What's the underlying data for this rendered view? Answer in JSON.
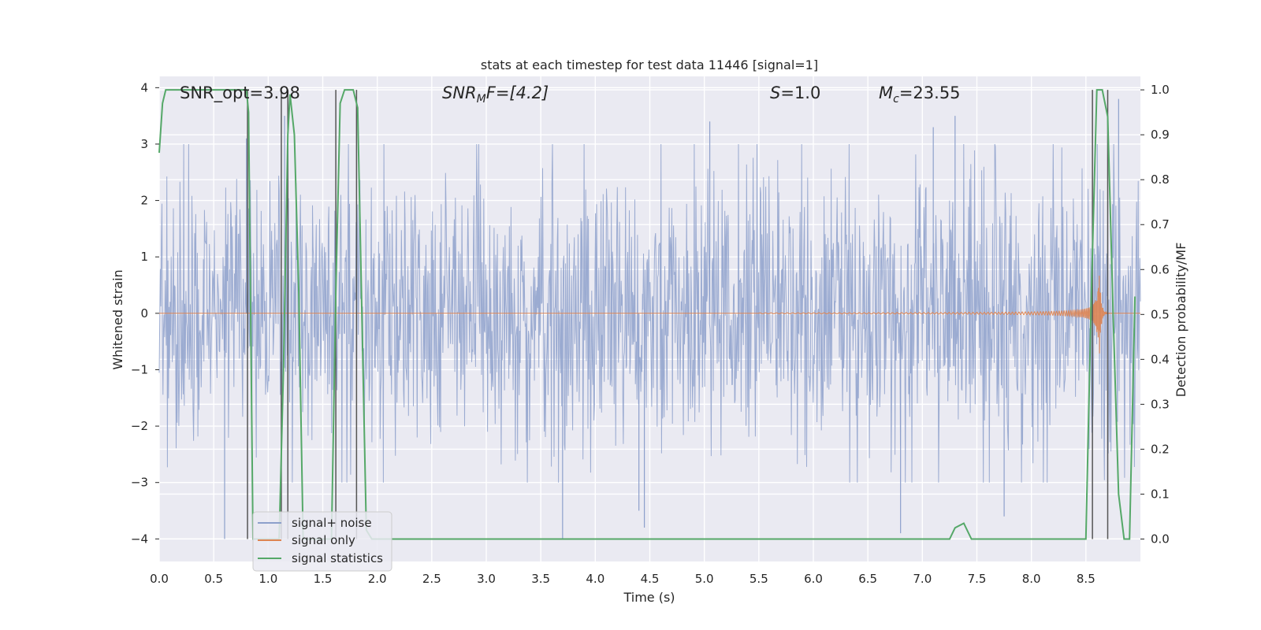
{
  "chart_data": {
    "type": "line",
    "title": "stats at each timestep for test data 11446 [signal=1]",
    "xlabel": "Time (s)",
    "ylabel_left": "Whitened strain",
    "ylabel_right": "Detection probability/MF",
    "xlim": [
      0,
      9
    ],
    "ylim_left": [
      -4.4,
      4.2
    ],
    "ylim_right": [
      -0.05,
      1.03
    ],
    "x_ticks": [
      "0.0",
      "0.5",
      "1.0",
      "1.5",
      "2.0",
      "2.5",
      "3.0",
      "3.5",
      "4.0",
      "4.5",
      "5.0",
      "5.5",
      "6.0",
      "6.5",
      "7.0",
      "7.5",
      "8.0",
      "8.5"
    ],
    "y_left_ticks": [
      "4",
      "3",
      "2",
      "1",
      "0",
      "−1",
      "−2",
      "−3",
      "−4"
    ],
    "y_right_ticks": [
      "1.0",
      "0.9",
      "0.8",
      "0.7",
      "0.6",
      "0.5",
      "0.4",
      "0.3",
      "0.2",
      "0.1",
      "0.0"
    ],
    "grid": true,
    "legend_position": "lower-left",
    "annotations": {
      "snr_opt": "SNR_opt=3.98",
      "snr_mf_base": "SNR",
      "snr_mf_sub": "M",
      "snr_mf_rest": "F=[4.2]",
      "s_base": "S",
      "s_rest": "=1.0",
      "mc_base": "M",
      "mc_sub": "c",
      "mc_rest": "=23.55"
    },
    "series": [
      {
        "name": "signal+ noise",
        "color": "#8da0cb",
        "axis": "left",
        "description": "whitened strain noise, amplitude roughly within ±2 with peaks to ±4",
        "amplitude_envelope": [
          [
            0.0,
            1.6
          ],
          [
            4.5,
            1.6
          ],
          [
            9.0,
            1.7
          ]
        ],
        "peaks": [
          [
            0.6,
            -4.0
          ],
          [
            0.8,
            3.1
          ],
          [
            1.15,
            3.5
          ],
          [
            3.7,
            -4.0
          ],
          [
            4.4,
            -3.5
          ],
          [
            4.45,
            -3.8
          ],
          [
            5.05,
            3.4
          ],
          [
            6.8,
            -3.9
          ],
          [
            7.1,
            3.3
          ],
          [
            7.3,
            3.5
          ],
          [
            7.75,
            -3.6
          ],
          [
            8.8,
            3.8
          ]
        ]
      },
      {
        "name": "signal only",
        "color": "#dd8452",
        "axis": "left",
        "description": "chirp waveform growing toward merger",
        "chirp": {
          "t_start": 5.5,
          "t_merger": 8.62,
          "peak_amplitude": 1.0
        }
      },
      {
        "name": "signal statistics",
        "color": "#55a868",
        "axis": "right",
        "x": [
          0.0,
          0.03,
          0.06,
          0.1,
          0.8,
          0.82,
          0.86,
          1.1,
          1.14,
          1.18,
          1.2,
          1.24,
          1.28,
          1.32,
          1.58,
          1.62,
          1.66,
          1.7,
          1.78,
          1.82,
          1.9,
          1.95,
          2.0,
          7.25,
          7.3,
          7.38,
          7.45,
          8.5,
          8.55,
          8.6,
          8.65,
          8.7,
          8.75,
          8.8,
          8.85,
          8.9,
          8.95
        ],
        "y": [
          0.86,
          0.97,
          1.0,
          1.0,
          1.0,
          0.95,
          0.0,
          0.0,
          0.38,
          0.9,
          0.99,
          0.9,
          0.55,
          0.0,
          0.0,
          0.55,
          0.97,
          1.0,
          1.0,
          0.96,
          0.02,
          0.0,
          0.0,
          0.0,
          0.025,
          0.035,
          0.0,
          0.0,
          0.55,
          1.0,
          1.0,
          0.94,
          0.5,
          0.1,
          0.0,
          0.0,
          0.54
        ]
      },
      {
        "name": "",
        "color": "#555555",
        "axis": "right",
        "type": "vertical-markers",
        "x": [
          0.81,
          1.12,
          1.18,
          1.62,
          1.81,
          8.56,
          8.7
        ]
      }
    ],
    "colors": {
      "background": "#eaeaf2",
      "grid": "#ffffff",
      "noise": "#8da0cb",
      "signal": "#dd8452",
      "stat": "#55a868",
      "marker": "#555555"
    }
  }
}
